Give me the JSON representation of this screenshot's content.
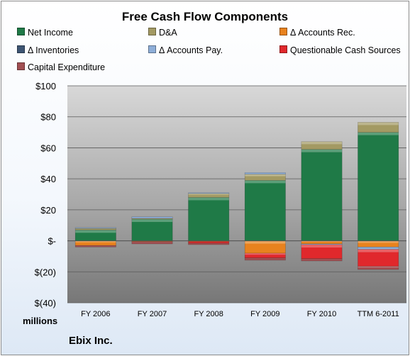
{
  "chart_data": {
    "type": "bar",
    "stacked": true,
    "title": "Free Cash Flow Components",
    "categories": [
      "FY 2006",
      "FY 2007",
      "FY 2008",
      "FY 2009",
      "FY 2010",
      "TTM 6-2011"
    ],
    "ylim": [
      -40,
      100
    ],
    "yticks": [
      {
        "value": 100,
        "label": "$100"
      },
      {
        "value": 80,
        "label": "$80"
      },
      {
        "value": 60,
        "label": "$60"
      },
      {
        "value": 40,
        "label": "$40"
      },
      {
        "value": 20,
        "label": "$20"
      },
      {
        "value": 0,
        "label": "$-"
      },
      {
        "value": -20,
        "label": "$(20)"
      },
      {
        "value": -40,
        "label": "$(40)"
      }
    ],
    "unit_label": "millions",
    "grid": true,
    "legend_position": "top",
    "series": [
      {
        "name": "Net Income",
        "color": "#1f7a47",
        "values": [
          7,
          14,
          28,
          39,
          59,
          70
        ]
      },
      {
        "name": "D&A",
        "color": "#a39a63",
        "values": [
          1,
          0.5,
          2.5,
          4,
          5,
          6.5
        ]
      },
      {
        "name": "Δ Accounts Rec.",
        "color": "#e8821e",
        "values": [
          -3,
          -0.5,
          -0.5,
          -8,
          -2,
          -4
        ]
      },
      {
        "name": "Δ Inventories",
        "color": "#3d5573",
        "values": [
          0,
          0,
          0,
          0,
          0,
          0
        ]
      },
      {
        "name": "Δ Accounts Pay.",
        "color": "#8eaed8",
        "values": [
          0.5,
          1,
          0.5,
          1,
          -0.5,
          -1.5
        ]
      },
      {
        "name": "Questionable Cash Sources",
        "color": "#e0282c",
        "values": [
          0,
          0,
          -1,
          -3,
          -9,
          -11
        ]
      },
      {
        "name": "Capital Expenditure",
        "color": "#a14f52",
        "values": [
          -1,
          -1.5,
          -1,
          -1.5,
          -1.5,
          -2
        ]
      }
    ]
  },
  "footer": {
    "company": "Ebix Inc."
  }
}
